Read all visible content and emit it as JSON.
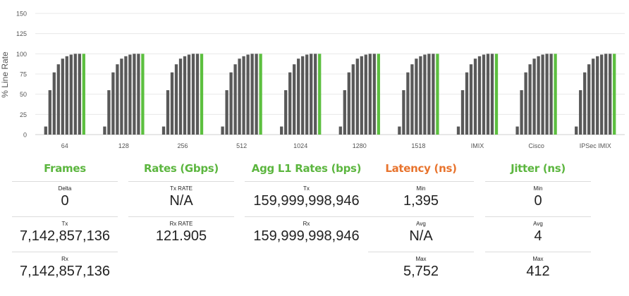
{
  "chart_data": {
    "type": "bar",
    "ylabel": "% Line Rate",
    "ylim": [
      0,
      150
    ],
    "yticks": [
      0,
      25,
      50,
      75,
      100,
      125,
      150
    ],
    "grid": true,
    "categories": [
      "64",
      "128",
      "256",
      "512",
      "1024",
      "1280",
      "1518",
      "IMIX",
      "Cisco",
      "IPSec IMIX"
    ],
    "bars_per_category": [
      10,
      55,
      77,
      87,
      94,
      97,
      99,
      100,
      100,
      100
    ],
    "bar_color": "#595959",
    "highlight_color": "#5cbf3f"
  },
  "stats": {
    "colors": {
      "green": "#5cb63f",
      "orange": "#e8742e"
    },
    "frames": {
      "title": "Frames",
      "rows": [
        {
          "label": "Delta",
          "value": "0"
        },
        {
          "label": "Tx",
          "value": "7,142,857,136"
        },
        {
          "label": "Rx",
          "value": "7,142,857,136"
        }
      ]
    },
    "rates": {
      "title": "Rates (Gbps)",
      "rows": [
        {
          "label": "Tx RATE",
          "value": "N/A"
        },
        {
          "label": "Rx RATE",
          "value": "121.905"
        }
      ]
    },
    "agg": {
      "title": "Agg L1 Rates (bps)",
      "rows": [
        {
          "label": "Tx",
          "value": "159,999,998,946"
        },
        {
          "label": "Rx",
          "value": "159,999,998,946"
        }
      ]
    },
    "latency": {
      "title": "Latency (ns)",
      "rows": [
        {
          "label": "Min",
          "value": "1,395"
        },
        {
          "label": "Avg",
          "value": "N/A"
        },
        {
          "label": "Max",
          "value": "5,752"
        }
      ]
    },
    "jitter": {
      "title": "Jitter (ns)",
      "rows": [
        {
          "label": "Min",
          "value": "0"
        },
        {
          "label": "Avg",
          "value": "4"
        },
        {
          "label": "Max",
          "value": "412"
        }
      ]
    }
  }
}
